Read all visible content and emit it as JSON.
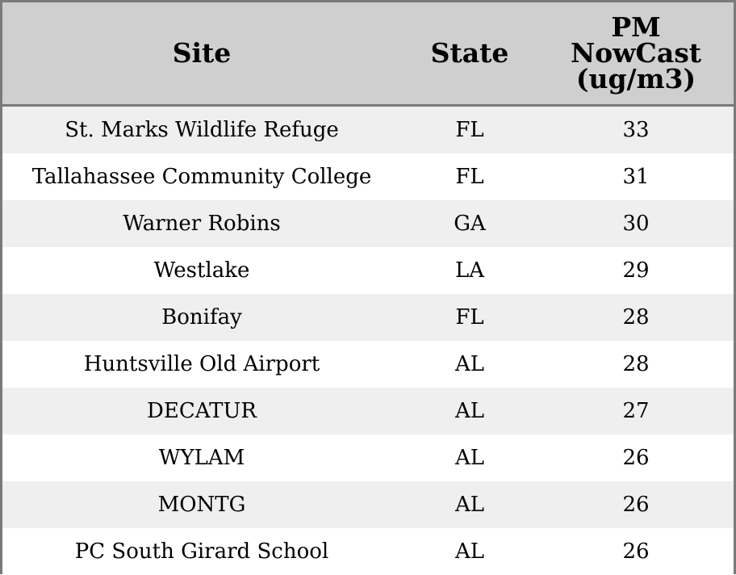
{
  "chart_data": {
    "type": "table",
    "columns": [
      "Site",
      "State",
      "PM NowCast (ug/m3)"
    ],
    "rows": [
      {
        "site": "St. Marks Wildlife Refuge",
        "state": "FL",
        "pm": 33
      },
      {
        "site": "Tallahassee Community College",
        "state": "FL",
        "pm": 31
      },
      {
        "site": "Warner Robins",
        "state": "GA",
        "pm": 30
      },
      {
        "site": "Westlake",
        "state": "LA",
        "pm": 29
      },
      {
        "site": "Bonifay",
        "state": "FL",
        "pm": 28
      },
      {
        "site": "Huntsville Old Airport",
        "state": "AL",
        "pm": 28
      },
      {
        "site": "DECATUR",
        "state": "AL",
        "pm": 27
      },
      {
        "site": "WYLAM",
        "state": "AL",
        "pm": 26
      },
      {
        "site": "MONTG",
        "state": "AL",
        "pm": 26
      },
      {
        "site": "PC South Girard School",
        "state": "AL",
        "pm": 26
      }
    ]
  },
  "colors": {
    "header_bg": "#cfcfcf",
    "stripe_bg": "#efefef",
    "row_bg": "#ffffff",
    "border": "#7a7a7a"
  }
}
